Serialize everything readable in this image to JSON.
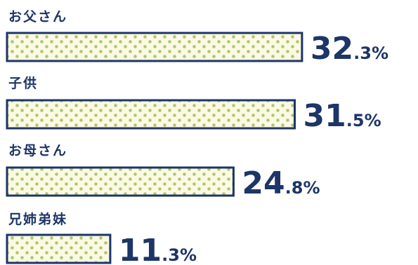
{
  "chart_data": {
    "type": "bar",
    "orientation": "horizontal",
    "categories": [
      "お父さん",
      "子供",
      "お母さん",
      "兄姉弟妹"
    ],
    "values": [
      32.3,
      31.5,
      24.8,
      11.3
    ],
    "value_labels": [
      {
        "int": "32",
        "dec": ".3",
        "unit": "%"
      },
      {
        "int": "31",
        "dec": ".5",
        "unit": "%"
      },
      {
        "int": "24",
        "dec": ".8",
        "unit": "%"
      },
      {
        "int": "11",
        "dec": ".3",
        "unit": "%"
      }
    ],
    "title": "",
    "xlabel": "",
    "ylabel": "",
    "grid": false,
    "legend": "none",
    "colors": {
      "bar_outline": "#1d3567",
      "bar_fill": "#fcf9e3",
      "dot": "#aac873",
      "label_text": "#1d3567"
    }
  }
}
